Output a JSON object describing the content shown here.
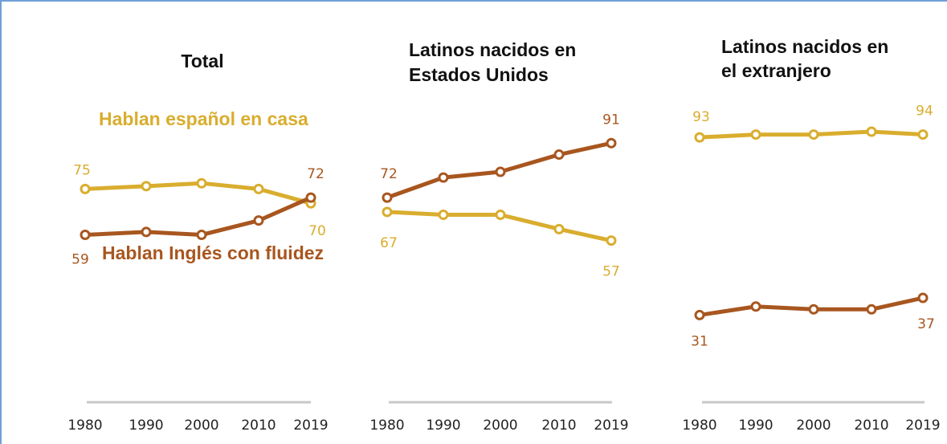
{
  "colors": {
    "spanish": "#d9ad2e",
    "english": "#a8561f",
    "axis": "#c8c8c8",
    "frame": "#6f9fd8"
  },
  "series_labels": {
    "spanish": "Hablan español en casa",
    "english": "Hablan Inglés con fluidez"
  },
  "chart_data": [
    {
      "type": "line",
      "title": "Total",
      "x": [
        "1980",
        "1990",
        "2000",
        "2010",
        "2019"
      ],
      "series": [
        {
          "name": "Hablan español en casa",
          "color": "#d9ad2e",
          "values": [
            75,
            76,
            77,
            75,
            70
          ],
          "data_labels": {
            "first": "75",
            "last": "70"
          }
        },
        {
          "name": "Hablan Inglés con fluidez",
          "color": "#a8561f",
          "values": [
            59,
            60,
            59,
            64,
            72
          ],
          "data_labels": {
            "first": "59",
            "last": "72"
          }
        }
      ]
    },
    {
      "type": "line",
      "title": "Latinos nacidos en Estados Unidos",
      "x": [
        "1980",
        "1990",
        "2000",
        "2010",
        "2019"
      ],
      "series": [
        {
          "name": "Hablan español en casa",
          "color": "#d9ad2e",
          "values": [
            67,
            66,
            66,
            61,
            57
          ],
          "data_labels": {
            "first": "67",
            "last": "57"
          }
        },
        {
          "name": "Hablan Inglés con fluidez",
          "color": "#a8561f",
          "values": [
            72,
            79,
            81,
            87,
            91
          ],
          "data_labels": {
            "first": "72",
            "last": "91"
          }
        }
      ]
    },
    {
      "type": "line",
      "title": "Latinos nacidos en el extranjero",
      "x": [
        "1980",
        "1990",
        "2000",
        "2010",
        "2019"
      ],
      "series": [
        {
          "name": "Hablan español en casa",
          "color": "#d9ad2e",
          "values": [
            93,
            94,
            94,
            95,
            94
          ],
          "data_labels": {
            "first": "93",
            "last": "94"
          }
        },
        {
          "name": "Hablan Inglés con fluidez",
          "color": "#a8561f",
          "values": [
            31,
            34,
            33,
            33,
            37
          ],
          "data_labels": {
            "first": "31",
            "last": "37"
          }
        }
      ]
    }
  ]
}
